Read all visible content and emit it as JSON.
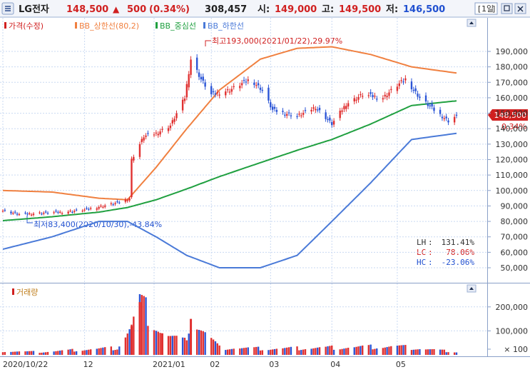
{
  "header": {
    "name": "LG전자",
    "price": "148,500",
    "arrow": "▲",
    "change": "500",
    "change_pct": "(0.34%)",
    "volume": "308,457",
    "open_label": "시:",
    "open": "149,000",
    "high_label": "고:",
    "high": "149,500",
    "low_label": "저:",
    "low": "146,500",
    "period": "1일"
  },
  "legend": [
    {
      "label": "가격(수정)",
      "color": "#d02020"
    },
    {
      "label": "BB_상한선(80,2)",
      "color": "#f08040"
    },
    {
      "label": "BB_중심선",
      "color": "#20a040"
    },
    {
      "label": "BB_하한선",
      "color": "#4a7ad8"
    }
  ],
  "annotations": {
    "high_marker": "최고193,000(2021/01/22),29.97%",
    "low_marker": "최저83,400(2020/10/30),-43.84%",
    "current_price": "148,500",
    "current_pct": "0.34%"
  },
  "stats": [
    {
      "key": "LH",
      "value": "131.41%",
      "color": "#303030"
    },
    {
      "key": "LC",
      "value": "78.06%",
      "color": "#d02020"
    },
    {
      "key": "HC",
      "value": "-23.06%",
      "color": "#2050d0"
    }
  ],
  "volume_label": "거래량",
  "colors": {
    "up": "#e03030",
    "down": "#2b55d6",
    "upper_band": "#f08040",
    "middle_band": "#20a040",
    "lower_band": "#4a7ad8",
    "grid": "#c9d9f2"
  },
  "chart_data": {
    "type": "candlestick",
    "x_labels": [
      "2020/10/22",
      "12",
      "2021/01",
      "02",
      "03",
      "04",
      "05"
    ],
    "x_label_dates": [
      "2020-10-22",
      "2020-12-01",
      "2021-01-04",
      "2021-02-01",
      "2021-03-02",
      "2021-04-01",
      "2021-05-03"
    ],
    "price_axis": {
      "ylim": [
        40000,
        200000
      ],
      "ticks": [
        50000,
        60000,
        70000,
        80000,
        90000,
        100000,
        110000,
        120000,
        130000,
        140000,
        150000,
        160000,
        170000,
        180000,
        190000
      ],
      "tick_labels": [
        "50,000",
        "60,000",
        "70,000",
        "80,000",
        "90,000",
        "100,000",
        "110,000",
        "120,000",
        "130,000",
        "140,000",
        "150,000",
        "160,000",
        "170,000",
        "180,000",
        "190,000"
      ]
    },
    "volume_axis": {
      "ylim": [
        0,
        250000
      ],
      "ticks": [
        100,
        100000,
        200000
      ],
      "tick_labels": [
        "× 100",
        "100,000",
        "200,000"
      ]
    },
    "price_points": [
      [
        "2020-10-22",
        87000
      ],
      [
        "2020-10-30",
        84500
      ],
      [
        "2020-11-10",
        85500
      ],
      [
        "2020-11-20",
        86000
      ],
      [
        "2020-12-01",
        87500
      ],
      [
        "2020-12-10",
        90000
      ],
      [
        "2020-12-17",
        92000
      ],
      [
        "2020-12-23",
        95000
      ],
      [
        "2020-12-24",
        120000
      ],
      [
        "2020-12-30",
        135000
      ],
      [
        "2021-01-05",
        137000
      ],
      [
        "2021-01-12",
        142000
      ],
      [
        "2021-01-19",
        160000
      ],
      [
        "2021-01-22",
        185000
      ],
      [
        "2021-01-27",
        172000
      ],
      [
        "2021-02-01",
        162000
      ],
      [
        "2021-02-10",
        165000
      ],
      [
        "2021-02-20",
        172000
      ],
      [
        "2021-02-26",
        165000
      ],
      [
        "2021-03-03",
        152000
      ],
      [
        "2021-03-15",
        148000
      ],
      [
        "2021-03-24",
        154000
      ],
      [
        "2021-04-01",
        143000
      ],
      [
        "2021-04-08",
        156000
      ],
      [
        "2021-04-16",
        162000
      ],
      [
        "2021-04-26",
        160000
      ],
      [
        "2021-05-03",
        168000
      ],
      [
        "2021-05-07",
        172000
      ],
      [
        "2021-05-14",
        160000
      ],
      [
        "2021-05-21",
        152000
      ],
      [
        "2021-05-28",
        145000
      ],
      [
        "2021-06-01",
        148500
      ]
    ],
    "series": [
      {
        "name": "BB_상한선(80,2)",
        "points": [
          [
            "2020-10-22",
            100000
          ],
          [
            "2020-11-15",
            99000
          ],
          [
            "2020-12-08",
            95000
          ],
          [
            "2020-12-22",
            94000
          ],
          [
            "2021-01-05",
            115000
          ],
          [
            "2021-01-20",
            140000
          ],
          [
            "2021-02-05",
            165000
          ],
          [
            "2021-02-25",
            185000
          ],
          [
            "2021-03-15",
            192000
          ],
          [
            "2021-04-01",
            193000
          ],
          [
            "2021-04-20",
            188000
          ],
          [
            "2021-05-10",
            180000
          ],
          [
            "2021-06-01",
            176000
          ]
        ]
      },
      {
        "name": "BB_중심선",
        "points": [
          [
            "2020-10-22",
            80500
          ],
          [
            "2020-11-15",
            83000
          ],
          [
            "2020-12-08",
            86000
          ],
          [
            "2020-12-22",
            89000
          ],
          [
            "2021-01-05",
            94000
          ],
          [
            "2021-01-20",
            101000
          ],
          [
            "2021-02-05",
            109000
          ],
          [
            "2021-02-25",
            118000
          ],
          [
            "2021-03-15",
            126000
          ],
          [
            "2021-04-01",
            133000
          ],
          [
            "2021-04-20",
            143000
          ],
          [
            "2021-05-10",
            155000
          ],
          [
            "2021-06-01",
            158000
          ]
        ]
      },
      {
        "name": "BB_하한선",
        "points": [
          [
            "2020-10-22",
            62000
          ],
          [
            "2020-11-15",
            70000
          ],
          [
            "2020-12-08",
            80000
          ],
          [
            "2020-12-22",
            80000
          ],
          [
            "2021-01-05",
            70000
          ],
          [
            "2021-01-20",
            58000
          ],
          [
            "2021-02-05",
            50000
          ],
          [
            "2021-02-25",
            50000
          ],
          [
            "2021-03-15",
            58000
          ],
          [
            "2021-04-01",
            80000
          ],
          [
            "2021-04-20",
            105000
          ],
          [
            "2021-05-10",
            133000
          ],
          [
            "2021-06-01",
            137000
          ]
        ]
      }
    ],
    "volume_points": [
      [
        "2020-10-22",
        15000
      ],
      [
        "2020-11-10",
        12000
      ],
      [
        "2020-12-01",
        22000
      ],
      [
        "2020-12-17",
        28000
      ],
      [
        "2020-12-24",
        120000
      ],
      [
        "2020-12-28",
        220000
      ],
      [
        "2021-01-08",
        90000
      ],
      [
        "2021-01-12",
        75000
      ],
      [
        "2021-01-19",
        55000
      ],
      [
        "2021-01-22",
        150000
      ],
      [
        "2021-02-05",
        30000
      ],
      [
        "2021-03-02",
        25000
      ],
      [
        "2021-04-01",
        30000
      ],
      [
        "2021-05-03",
        35000
      ],
      [
        "2021-06-01",
        12000
      ]
    ],
    "high": {
      "date": "2021-01-22",
      "value": 193000,
      "pct": 29.97
    },
    "low": {
      "date": "2020-10-30",
      "value": 83400,
      "pct": -43.84
    },
    "last": 148500,
    "grid": true,
    "legend_position": "top-left"
  }
}
